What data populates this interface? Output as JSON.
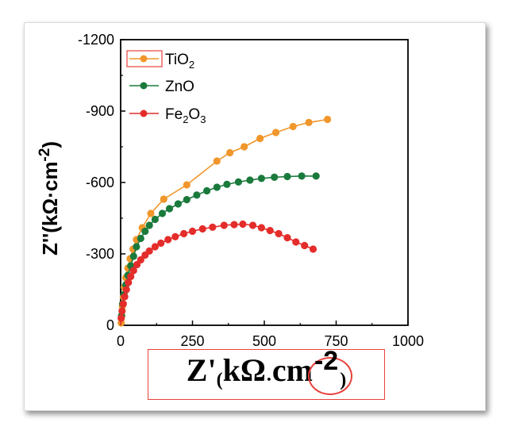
{
  "chart_data": {
    "type": "scatter",
    "ylabel": "Z''(kΩ·cm",
    "ylabel_sup": "-2",
    "ylabel_close": ")",
    "xlabel": {
      "main": "Z'",
      "paren_open": "(",
      "unit": "kΩ",
      "dot": "·",
      "unit2": "cm",
      "sup": "-2",
      "paren_close": ")"
    },
    "xlim": [
      0,
      1000
    ],
    "ylim": [
      0,
      -1200
    ],
    "xticks": [
      0,
      250,
      500,
      750,
      1000
    ],
    "xtick_labels": [
      "0",
      "250",
      "500",
      "750",
      "1000"
    ],
    "yticks": [
      0,
      -300,
      -600,
      -900,
      -1200
    ],
    "ytick_labels": [
      "0",
      "-300",
      "-600",
      "-900",
      "-1200"
    ],
    "legend_placement": "top-left",
    "series": [
      {
        "name": "TiO",
        "name_sub": "2",
        "color": "#f0962a",
        "line": true,
        "legend_boxed": true,
        "points": [
          [
            2,
            -10
          ],
          [
            4,
            -40
          ],
          [
            6,
            -80
          ],
          [
            9,
            -120
          ],
          [
            13,
            -160
          ],
          [
            18,
            -200
          ],
          [
            25,
            -240
          ],
          [
            33,
            -280
          ],
          [
            43,
            -320
          ],
          [
            55,
            -360
          ],
          [
            75,
            -410
          ],
          [
            105,
            -470
          ],
          [
            150,
            -530
          ],
          [
            230,
            -590
          ],
          [
            335,
            -690
          ],
          [
            380,
            -725
          ],
          [
            430,
            -750
          ],
          [
            485,
            -785
          ],
          [
            540,
            -810
          ],
          [
            600,
            -835
          ],
          [
            655,
            -852
          ],
          [
            720,
            -865
          ]
        ]
      },
      {
        "name": "ZnO",
        "name_sub": "",
        "color": "#1a7a3c",
        "line": true,
        "legend_boxed": false,
        "points": [
          [
            3,
            -40
          ],
          [
            7,
            -90
          ],
          [
            12,
            -130
          ],
          [
            18,
            -170
          ],
          [
            25,
            -210
          ],
          [
            35,
            -250
          ],
          [
            45,
            -290
          ],
          [
            55,
            -330
          ],
          [
            70,
            -365
          ],
          [
            85,
            -395
          ],
          [
            100,
            -420
          ],
          [
            120,
            -445
          ],
          [
            145,
            -470
          ],
          [
            170,
            -490
          ],
          [
            200,
            -510
          ],
          [
            230,
            -528
          ],
          [
            265,
            -547
          ],
          [
            300,
            -565
          ],
          [
            335,
            -580
          ],
          [
            370,
            -592
          ],
          [
            410,
            -602
          ],
          [
            450,
            -610
          ],
          [
            490,
            -617
          ],
          [
            535,
            -622
          ],
          [
            580,
            -625
          ],
          [
            630,
            -627
          ],
          [
            680,
            -627
          ]
        ]
      },
      {
        "name": "Fe",
        "name_sub": "2",
        "name_mid": "O",
        "name_sub2": "3",
        "color": "#e42d2b",
        "line": true,
        "legend_boxed": false,
        "points": [
          [
            2,
            -30
          ],
          [
            5,
            -60
          ],
          [
            9,
            -90
          ],
          [
            14,
            -120
          ],
          [
            20,
            -150
          ],
          [
            27,
            -180
          ],
          [
            35,
            -205
          ],
          [
            45,
            -230
          ],
          [
            57,
            -255
          ],
          [
            70,
            -275
          ],
          [
            85,
            -295
          ],
          [
            100,
            -312
          ],
          [
            120,
            -330
          ],
          [
            140,
            -345
          ],
          [
            165,
            -360
          ],
          [
            190,
            -372
          ],
          [
            220,
            -385
          ],
          [
            250,
            -395
          ],
          [
            285,
            -405
          ],
          [
            320,
            -412
          ],
          [
            360,
            -420
          ],
          [
            395,
            -423
          ],
          [
            425,
            -425
          ],
          [
            460,
            -420
          ],
          [
            490,
            -410
          ],
          [
            520,
            -398
          ],
          [
            550,
            -385
          ],
          [
            580,
            -368
          ],
          [
            610,
            -350
          ],
          [
            640,
            -335
          ],
          [
            670,
            -320
          ]
        ]
      }
    ]
  }
}
